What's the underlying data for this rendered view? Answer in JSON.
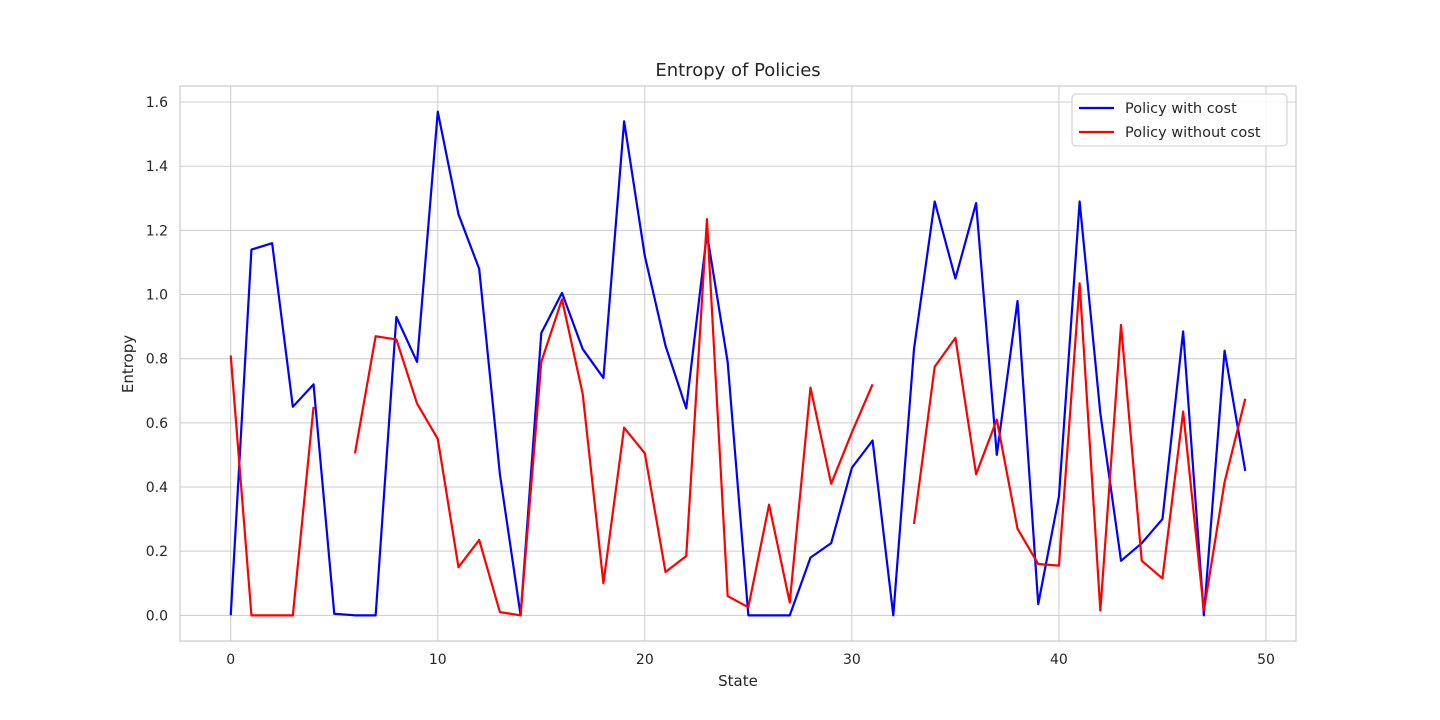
{
  "chart_data": {
    "type": "line",
    "title": "Entropy of Policies",
    "xlabel": "State",
    "ylabel": "Entropy",
    "xlim": [
      -2.45,
      51.45
    ],
    "ylim": [
      -0.08,
      1.65
    ],
    "xticks": [
      0,
      10,
      20,
      30,
      40,
      50
    ],
    "yticks": [
      0.0,
      0.2,
      0.4,
      0.6,
      0.8,
      1.0,
      1.2,
      1.4,
      1.6
    ],
    "xtick_labels": [
      "0",
      "10",
      "20",
      "30",
      "40",
      "50"
    ],
    "ytick_labels": [
      "0.0",
      "0.2",
      "0.4",
      "0.6",
      "0.8",
      "1.0",
      "1.2",
      "1.4",
      "1.6"
    ],
    "grid": true,
    "legend_position": "top-right",
    "x": [
      0,
      1,
      2,
      3,
      4,
      5,
      6,
      7,
      8,
      9,
      10,
      11,
      12,
      13,
      14,
      15,
      16,
      17,
      18,
      19,
      20,
      21,
      22,
      23,
      24,
      25,
      26,
      27,
      28,
      29,
      30,
      31,
      32,
      33,
      34,
      35,
      36,
      37,
      38,
      39,
      40,
      41,
      42,
      43,
      44,
      45,
      46,
      47,
      48,
      49
    ],
    "series": [
      {
        "name": "Policy with cost",
        "color": "#0000ff",
        "values": [
          0.0,
          1.14,
          1.16,
          0.65,
          0.72,
          0.005,
          0.0,
          0.0,
          0.93,
          0.79,
          1.57,
          1.25,
          1.08,
          0.44,
          0.0,
          0.88,
          1.005,
          0.83,
          0.74,
          1.54,
          1.12,
          0.84,
          0.645,
          1.19,
          0.79,
          0.0,
          0.0,
          0.0,
          0.18,
          0.225,
          0.46,
          0.545,
          0.0,
          0.83,
          1.29,
          1.05,
          1.285,
          0.5,
          0.98,
          0.035,
          0.37,
          1.29,
          0.63,
          0.17,
          0.225,
          0.3,
          0.885,
          0.0,
          0.825,
          0.45
        ]
      },
      {
        "name": "Policy without cost",
        "color": "#ff0000",
        "values": [
          0.81,
          0.0,
          0.0,
          0.0,
          0.65,
          null,
          0.505,
          0.87,
          0.86,
          0.66,
          0.55,
          0.15,
          0.235,
          0.01,
          0.0,
          0.79,
          0.985,
          0.69,
          0.1,
          0.585,
          0.505,
          0.135,
          0.185,
          1.235,
          0.06,
          0.025,
          0.345,
          0.04,
          0.71,
          0.41,
          0.57,
          0.72,
          null,
          0.285,
          0.775,
          0.865,
          0.44,
          0.61,
          0.27,
          0.16,
          0.155,
          1.035,
          0.015,
          0.905,
          0.17,
          0.115,
          0.635,
          0.015,
          0.415,
          0.675
        ]
      }
    ]
  }
}
